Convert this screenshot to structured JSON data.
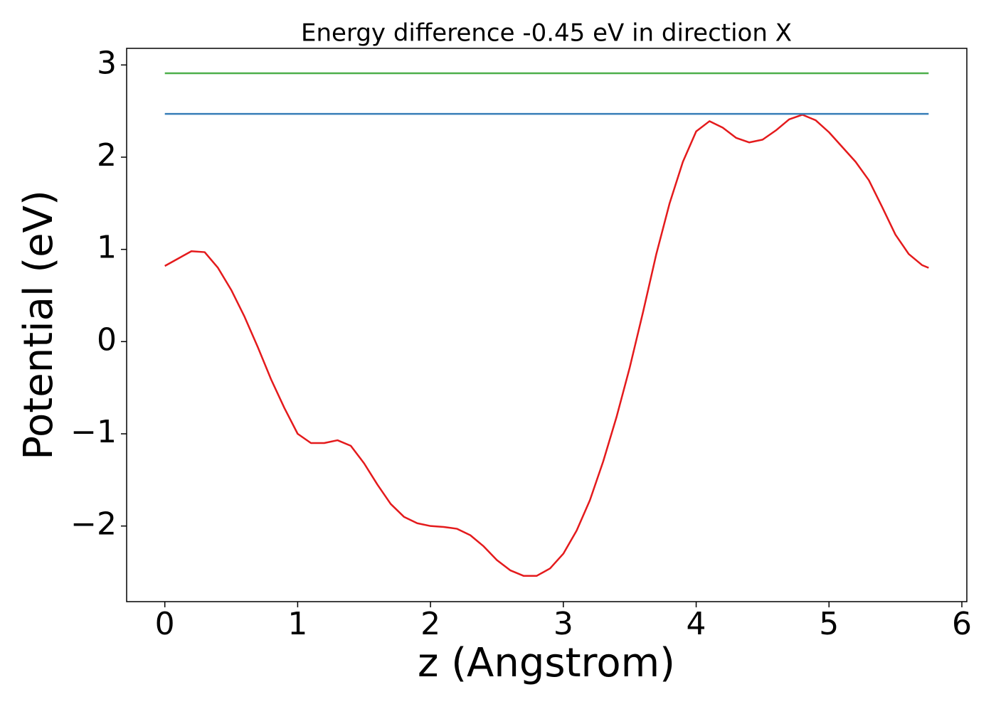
{
  "chart_data": {
    "type": "line",
    "title": "Energy difference -0.45 eV in direction X",
    "x_label": "z (Angstrom)",
    "y_label": "Potential (eV)",
    "xlim": [
      -0.2875,
      6.0375
    ],
    "ylim": [
      -2.82,
      3.18
    ],
    "xticks": [
      0,
      1,
      2,
      3,
      4,
      5,
      6
    ],
    "yticks": [
      {
        "value": -2,
        "label": "−2"
      },
      {
        "value": -1,
        "label": "−1"
      },
      0,
      1,
      2,
      3
    ],
    "series": [
      {
        "color": "#e41a1c",
        "x": [
          0,
          0.1,
          0.2,
          0.3,
          0.4,
          0.5,
          0.6,
          0.7,
          0.8,
          0.9,
          1.0,
          1.1,
          1.2,
          1.3,
          1.4,
          1.5,
          1.6,
          1.7,
          1.8,
          1.9,
          2.0,
          2.1,
          2.2,
          2.3,
          2.4,
          2.5,
          2.6,
          2.7,
          2.8,
          2.9,
          3.0,
          3.1,
          3.2,
          3.3,
          3.4,
          3.5,
          3.6,
          3.7,
          3.8,
          3.9,
          4.0,
          4.1,
          4.2,
          4.3,
          4.4,
          4.5,
          4.6,
          4.7,
          4.8,
          4.9,
          5.0,
          5.1,
          5.2,
          5.3,
          5.4,
          5.5,
          5.6,
          5.7,
          5.75
        ],
        "values": [
          0.82,
          0.9,
          0.98,
          0.97,
          0.8,
          0.56,
          0.27,
          -0.06,
          -0.41,
          -0.72,
          -1.0,
          -1.1,
          -1.1,
          -1.07,
          -1.13,
          -1.32,
          -1.55,
          -1.76,
          -1.9,
          -1.97,
          -2.0,
          -2.01,
          -2.03,
          -2.1,
          -2.22,
          -2.37,
          -2.48,
          -2.54,
          -2.54,
          -2.46,
          -2.3,
          -2.05,
          -1.72,
          -1.3,
          -0.82,
          -0.28,
          0.32,
          0.95,
          1.5,
          1.95,
          2.28,
          2.39,
          2.32,
          2.21,
          2.16,
          2.19,
          2.29,
          2.41,
          2.46,
          2.4,
          2.27,
          2.11,
          1.95,
          1.75,
          1.46,
          1.16,
          0.95,
          0.83,
          0.8
        ]
      },
      {
        "color": "#377eb8",
        "x": [
          0,
          5.75
        ],
        "values": [
          2.47,
          2.47
        ]
      },
      {
        "color": "#4daf4a",
        "x": [
          0,
          5.75
        ],
        "values": [
          2.91,
          2.91
        ]
      }
    ]
  }
}
